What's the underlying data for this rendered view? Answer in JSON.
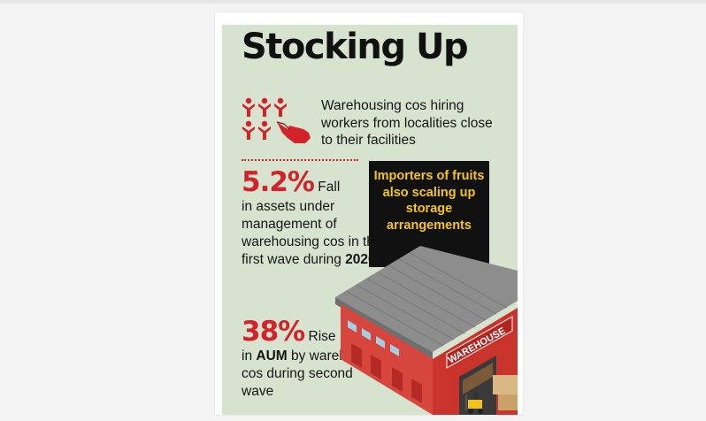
{
  "infographic": {
    "title": "Stocking Up",
    "intro": "Warehousing cos hiring workers from localities close to their facilities",
    "stat1": {
      "value": "5.2%",
      "lead": " Fall",
      "desc": "in assets under management of warehousing cos in the first wave during ",
      "year": "2020"
    },
    "highlight": "Importers of fruits also scaling up storage arrangements",
    "stat2": {
      "value": "38%",
      "lead": " Rise",
      "desc_pre": "in ",
      "desc_bold": "AUM",
      "desc_post": " by warehousing cos during second wave"
    },
    "warehouse_sign": "WAREHOUSE"
  },
  "colors": {
    "accent_red": "#d2232a",
    "background_green": "#d7e3cf",
    "highlight_yellow": "#f5c518"
  },
  "icons": [
    "people-group-icon",
    "pointing-hand-icon",
    "warehouse-illustration"
  ]
}
